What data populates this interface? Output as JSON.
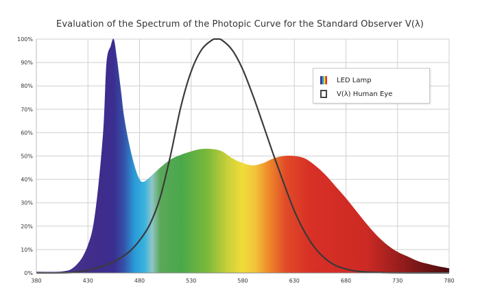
{
  "chart_data": {
    "type": "area",
    "title": "Evaluation of the Spectrum of the Photopic Curve for the Standard Observer V(λ)",
    "xlabel": "",
    "ylabel": "",
    "xlim": [
      380,
      780
    ],
    "ylim": [
      0,
      100
    ],
    "x_ticks": [
      380,
      430,
      480,
      530,
      580,
      630,
      680,
      730,
      780
    ],
    "y_ticks": [
      "0%",
      "10%",
      "20%",
      "30%",
      "40%",
      "50%",
      "60%",
      "70%",
      "80%",
      "90%",
      "100%"
    ],
    "grid": true,
    "legend_position": "top-right",
    "series": [
      {
        "name": "LED Lamp",
        "fill": "rainbow-spectrum",
        "x": [
          380,
          400,
          410,
          415,
          420,
          425,
          430,
          435,
          440,
          445,
          448,
          452,
          455,
          458,
          462,
          465,
          470,
          475,
          480,
          484,
          490,
          500,
          510,
          520,
          530,
          540,
          550,
          560,
          570,
          580,
          590,
          600,
          610,
          620,
          630,
          640,
          650,
          660,
          670,
          680,
          690,
          700,
          710,
          720,
          730,
          740,
          750,
          760,
          770,
          780
        ],
        "values": [
          0.5,
          0.5,
          1,
          2,
          4,
          7,
          12,
          20,
          37,
          62,
          90,
          97,
          100,
          92,
          78,
          67,
          55,
          46,
          40,
          39,
          41,
          45,
          48.5,
          50.5,
          52,
          53,
          53,
          52,
          49,
          47,
          46,
          47,
          49,
          50,
          50,
          49,
          46,
          42,
          37,
          32,
          26.5,
          21,
          16,
          12,
          9,
          7,
          5,
          3.8,
          2.8,
          2
        ]
      },
      {
        "name": "V(λ) Human Eye",
        "color": "#3a3a3a",
        "x": [
          380,
          400,
          420,
          440,
          450,
          460,
          470,
          480,
          490,
          500,
          510,
          520,
          530,
          540,
          550,
          555,
          560,
          570,
          580,
          590,
          600,
          610,
          620,
          630,
          640,
          650,
          660,
          670,
          680,
          690,
          700,
          720,
          740,
          760,
          780
        ],
        "values": [
          0,
          0,
          0.4,
          2.3,
          3.8,
          6,
          9.1,
          13.9,
          20.8,
          32.3,
          50.3,
          71,
          86.2,
          95.4,
          99.5,
          100,
          99.5,
          95.2,
          87,
          75.7,
          63.1,
          50.3,
          38.1,
          26.5,
          17.5,
          10.7,
          6.1,
          3.2,
          1.7,
          0.8,
          0.4,
          0.1,
          0,
          0,
          0
        ]
      }
    ]
  }
}
